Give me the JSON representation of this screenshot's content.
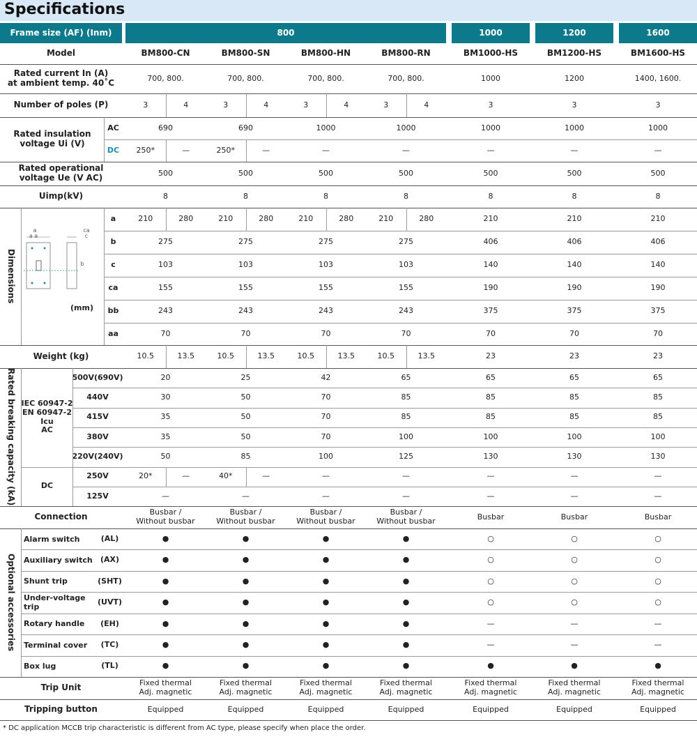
{
  "title": "Specifications",
  "header": {
    "label": "Frame size (AF) (Inm)",
    "groups": [
      "800",
      "1000",
      "1200",
      "1600"
    ]
  },
  "diagram": {
    "labels": [
      "a",
      "a a",
      "ca",
      "c",
      "b"
    ]
  },
  "rows": [
    {
      "label": "Model",
      "cells": [
        "BM800-CN",
        "BM800-SN",
        "BM800-HN",
        "BM800-RN",
        "BM1000-HS",
        "BM1200-HS",
        "BM1600-HS"
      ]
    },
    {
      "label": "Rated current In (A)\nat ambient temp. 40˚C",
      "cells": [
        "700,  800.",
        "700,  800.",
        "700,  800.",
        "700,  800.",
        "1000",
        "1200",
        "1400,  1600."
      ]
    },
    {
      "label": "Number of poles (P)",
      "cells": [
        [
          "3",
          "4"
        ],
        [
          "3",
          "4"
        ],
        [
          "3",
          "4"
        ],
        [
          "3",
          "4"
        ],
        "3",
        "3",
        "3"
      ]
    },
    {
      "label": "Rated insulation\nvoltage Ui (V)",
      "rows": [
        {
          "sub": "AC",
          "cells": [
            "690",
            "690",
            "1000",
            "1000",
            "1000",
            "1000",
            "1000"
          ]
        },
        {
          "sub": "DC",
          "cells": [
            [
              "250*",
              "—"
            ],
            [
              "250*",
              "—"
            ],
            "—",
            "—",
            "—",
            "—",
            "—"
          ]
        }
      ]
    },
    {
      "label": "Rated operational\nvoltage Ue (V AC)",
      "cells": [
        "500",
        "500",
        "500",
        "500",
        "500",
        "500",
        "500"
      ]
    },
    {
      "label": "Uimp(kV)",
      "cells": [
        "8",
        "8",
        "8",
        "8",
        "8",
        "8",
        "8"
      ]
    },
    {
      "label": "Dimensions",
      "note": "(mm)",
      "rows": [
        {
          "sub": "a",
          "cells": [
            [
              "210",
              "280"
            ],
            [
              "210",
              "280"
            ],
            [
              "210",
              "280"
            ],
            [
              "210",
              "280"
            ],
            "210",
            "210",
            "210"
          ]
        },
        {
          "sub": "b",
          "cells": [
            "275",
            "275",
            "275",
            "275",
            "406",
            "406",
            "406"
          ]
        },
        {
          "sub": "c",
          "cells": [
            "103",
            "103",
            "103",
            "103",
            "140",
            "140",
            "140"
          ]
        },
        {
          "sub": "ca",
          "cells": [
            "155",
            "155",
            "155",
            "155",
            "190",
            "190",
            "190"
          ]
        },
        {
          "sub": "bb",
          "cells": [
            "243",
            "243",
            "243",
            "243",
            "375",
            "375",
            "375"
          ]
        },
        {
          "sub": "aa",
          "cells": [
            "70",
            "70",
            "70",
            "70",
            "70",
            "70",
            "70"
          ]
        }
      ]
    },
    {
      "label": "Weight (kg)",
      "cells": [
        [
          "10.5",
          "13.5"
        ],
        [
          "10.5",
          "13.5"
        ],
        [
          "10.5",
          "13.5"
        ],
        [
          "10.5",
          "13.5"
        ],
        "23",
        "23",
        "23"
      ]
    },
    {
      "label": "Rated breaking capacity (kA)",
      "rows": [
        {
          "label": "IEC 60947-2\nEN 60947-2\nIcu\nAC",
          "rows": [
            {
              "sub": "500V(690V)",
              "cells": [
                "20",
                "25",
                "42",
                "65",
                "65",
                "65",
                "65"
              ]
            },
            {
              "sub": "440V",
              "cells": [
                "30",
                "50",
                "70",
                "85",
                "85",
                "85",
                "85"
              ]
            },
            {
              "sub": "415V",
              "cells": [
                "35",
                "50",
                "70",
                "85",
                "85",
                "85",
                "85"
              ]
            },
            {
              "sub": "380V",
              "cells": [
                "35",
                "50",
                "70",
                "100",
                "100",
                "100",
                "100"
              ]
            },
            {
              "sub": "220V(240V)",
              "cells": [
                "50",
                "85",
                "100",
                "125",
                "130",
                "130",
                "130"
              ]
            }
          ]
        },
        {
          "label": "DC",
          "rows": [
            {
              "sub": "250V",
              "cells": [
                [
                  "20*",
                  "—"
                ],
                [
                  "40*",
                  "—"
                ],
                "—",
                "—",
                "—",
                "—",
                "—"
              ]
            },
            {
              "sub": "125V",
              "cells": [
                "—",
                "—",
                "—",
                "—",
                "—",
                "—",
                "—"
              ]
            }
          ]
        }
      ]
    },
    {
      "label": "Connection",
      "cells": [
        "Busbar /\nWithout busbar",
        "Busbar /\nWithout busbar",
        "Busbar /\nWithout busbar",
        "Busbar /\nWithout busbar",
        "Busbar",
        "Busbar",
        "Busbar"
      ]
    },
    {
      "label": "Optional accessories",
      "rows": [
        {
          "sub": "Alarm switch",
          "code": "(AL)",
          "cells": [
            "●",
            "●",
            "●",
            "●",
            "○",
            "○",
            "○"
          ]
        },
        {
          "sub": "Auxiliary switch",
          "code": "(AX)",
          "cells": [
            "●",
            "●",
            "●",
            "●",
            "○",
            "○",
            "○"
          ]
        },
        {
          "sub": "Shunt trip",
          "code": "(SHT)",
          "cells": [
            "●",
            "●",
            "●",
            "●",
            "○",
            "○",
            "○"
          ]
        },
        {
          "sub": "Under-voltage trip",
          "code": "(UVT)",
          "cells": [
            "●",
            "●",
            "●",
            "●",
            "○",
            "○",
            "○"
          ]
        },
        {
          "sub": "Rotary handle",
          "code": "(EH)",
          "cells": [
            "●",
            "●",
            "●",
            "●",
            "—",
            "—",
            "—"
          ]
        },
        {
          "sub": "Terminal cover",
          "code": "(TC)",
          "cells": [
            "●",
            "●",
            "●",
            "●",
            "—",
            "—",
            "—"
          ]
        },
        {
          "sub": "Box lug",
          "code": "(TL)",
          "cells": [
            "●",
            "●",
            "●",
            "●",
            "●",
            "●",
            "●"
          ]
        }
      ]
    },
    {
      "label": "Trip Unit",
      "cells": [
        "Fixed thermal\nAdj. magnetic",
        "Fixed thermal\nAdj. magnetic",
        "Fixed thermal\nAdj. magnetic",
        "Fixed thermal\nAdj. magnetic",
        "Fixed thermal\nAdj. magnetic",
        "Fixed thermal\nAdj. magnetic",
        "Fixed thermal\nAdj. magnetic"
      ]
    },
    {
      "label": "Tripping button",
      "cells": [
        "Equipped",
        "Equipped",
        "Equipped",
        "Equipped",
        "Equipped",
        "Equipped",
        "Equipped"
      ]
    }
  ],
  "footnote": "* DC application MCCB trip characteristic is different from AC type, please specify when place the order."
}
